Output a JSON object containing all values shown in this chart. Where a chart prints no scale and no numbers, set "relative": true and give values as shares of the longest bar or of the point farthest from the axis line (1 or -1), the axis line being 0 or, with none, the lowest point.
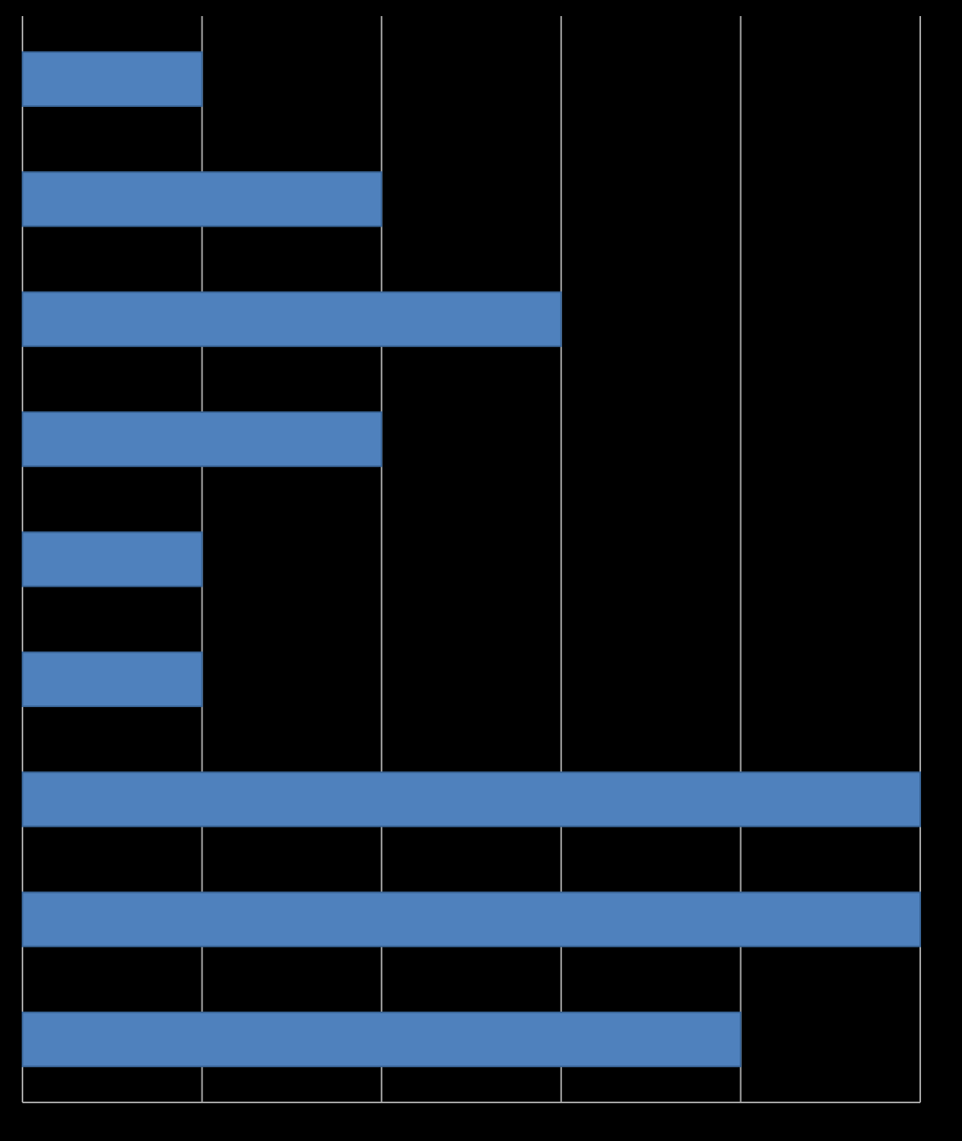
{
  "chart_data": {
    "type": "bar",
    "orientation": "horizontal",
    "relative": true,
    "grid": "x",
    "color": "#4f81bd",
    "categories": [
      null,
      null,
      null,
      null,
      null,
      null,
      null,
      null,
      null
    ],
    "values": [
      0.2,
      0.4,
      0.6,
      0.4,
      0.2,
      0.2,
      1,
      1,
      0.8
    ]
  }
}
